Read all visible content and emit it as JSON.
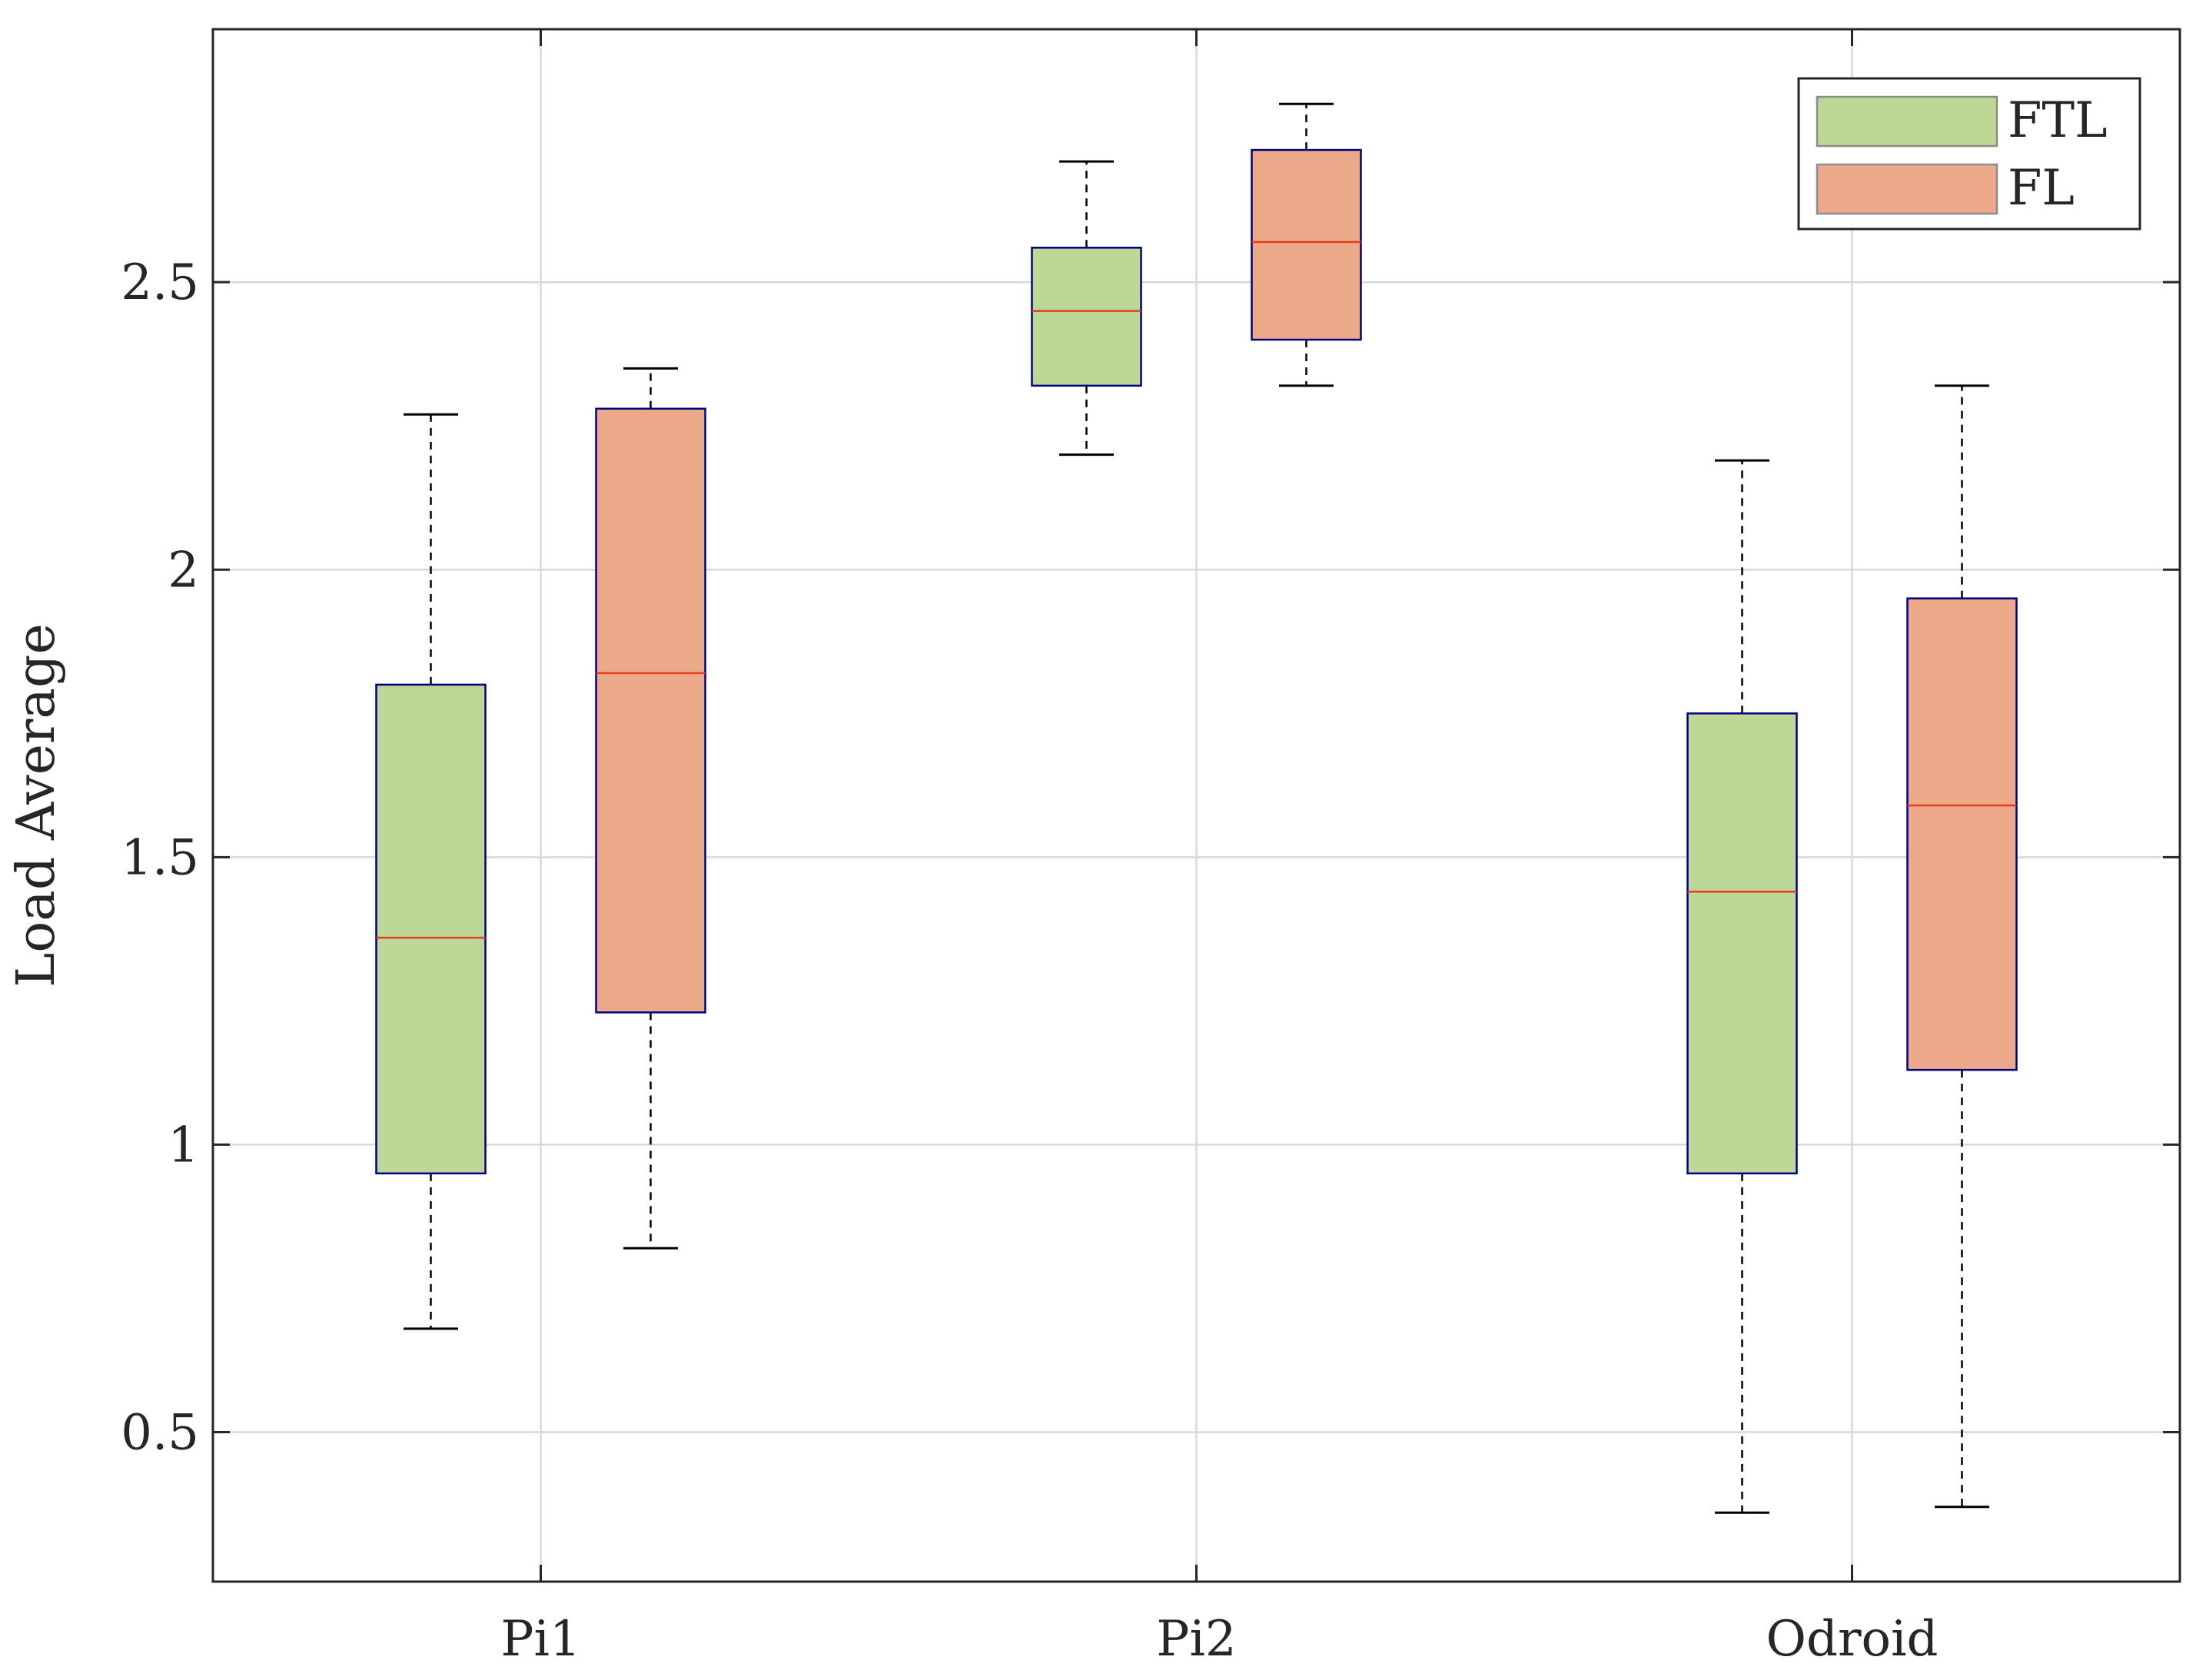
{
  "chart_data": {
    "type": "boxplot",
    "title": "",
    "xlabel": "",
    "ylabel": "Load Average",
    "ylim": [
      0.24,
      2.94
    ],
    "yticks": [
      0.5,
      1,
      1.5,
      2,
      2.5
    ],
    "ytick_labels": [
      "0.5",
      "1",
      "1.5",
      "2",
      "2.5"
    ],
    "categories": [
      "Pi1",
      "Pi2",
      "Odroid"
    ],
    "grid": true,
    "legend_position": "top-right",
    "series": [
      {
        "name": "FTL",
        "fill": "#bdd796",
        "boxes": [
          {
            "category": "Pi1",
            "whisker_low": 0.68,
            "q1": 0.95,
            "median": 1.36,
            "q3": 1.8,
            "whisker_high": 2.27
          },
          {
            "category": "Pi2",
            "whisker_low": 2.2,
            "q1": 2.32,
            "median": 2.45,
            "q3": 2.56,
            "whisker_high": 2.71
          },
          {
            "category": "Odroid",
            "whisker_low": 0.36,
            "q1": 0.95,
            "median": 1.44,
            "q3": 1.75,
            "whisker_high": 2.19
          }
        ]
      },
      {
        "name": "FL",
        "fill": "#eca98a",
        "boxes": [
          {
            "category": "Pi1",
            "whisker_low": 0.82,
            "q1": 1.23,
            "median": 1.82,
            "q3": 2.28,
            "whisker_high": 2.35
          },
          {
            "category": "Pi2",
            "whisker_low": 2.32,
            "q1": 2.4,
            "median": 2.57,
            "q3": 2.73,
            "whisker_high": 2.81
          },
          {
            "category": "Odroid",
            "whisker_low": 0.37,
            "q1": 1.13,
            "median": 1.59,
            "q3": 1.95,
            "whisker_high": 2.32
          }
        ]
      }
    ],
    "colors": {
      "box_edge": "#00007f",
      "median": "#e83a1c",
      "whisker": "#000000",
      "grid": "#d9d9d9",
      "axes": "#262626"
    }
  }
}
